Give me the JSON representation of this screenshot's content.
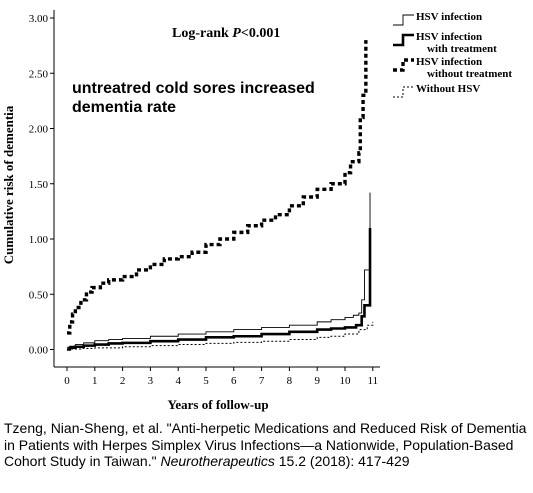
{
  "chart_data": {
    "type": "line",
    "title": "",
    "annotation_logrank_prefix": "Log-rank ",
    "annotation_logrank_p": "P",
    "annotation_logrank_suffix": "<0.001",
    "annotation_text_line1": "untreatred cold sores increased",
    "annotation_text_line2": "dementia rate",
    "xlabel": "Years of follow-up",
    "ylabel": "Cumulative risk of dementia",
    "xlim": [
      0,
      11.3
    ],
    "ylim": [
      0,
      3.0
    ],
    "xticks": [
      "0",
      "1",
      "2",
      "3",
      "4",
      "5",
      "6",
      "7",
      "8",
      "9",
      "10",
      "11"
    ],
    "yticks": [
      "0.00",
      "0.50",
      "1.00",
      "1.50",
      "2.00",
      "2.50",
      "3.00"
    ],
    "grid": false,
    "legend_position": "top-right",
    "series": [
      {
        "name": "HSV infection",
        "style": "solid-thin",
        "points": [
          [
            0,
            0.02
          ],
          [
            0.1,
            0.03
          ],
          [
            0.3,
            0.045
          ],
          [
            0.6,
            0.06
          ],
          [
            1,
            0.08
          ],
          [
            1.5,
            0.09
          ],
          [
            2,
            0.1
          ],
          [
            3,
            0.12
          ],
          [
            4,
            0.14
          ],
          [
            5,
            0.16
          ],
          [
            6,
            0.18
          ],
          [
            7,
            0.2
          ],
          [
            8,
            0.22
          ],
          [
            9,
            0.25
          ],
          [
            9.5,
            0.27
          ],
          [
            10,
            0.29
          ],
          [
            10.3,
            0.31
          ],
          [
            10.5,
            0.33
          ],
          [
            10.6,
            0.45
          ],
          [
            10.7,
            0.72
          ],
          [
            10.85,
            0.72
          ],
          [
            10.9,
            1.42
          ]
        ]
      },
      {
        "name": "HSV infection with treatment",
        "style": "solid-thick",
        "points": [
          [
            0,
            0.0
          ],
          [
            0.1,
            0.015
          ],
          [
            0.3,
            0.025
          ],
          [
            0.6,
            0.035
          ],
          [
            1,
            0.045
          ],
          [
            1.5,
            0.055
          ],
          [
            2,
            0.06
          ],
          [
            3,
            0.075
          ],
          [
            4,
            0.09
          ],
          [
            5,
            0.11
          ],
          [
            6,
            0.12
          ],
          [
            7,
            0.14
          ],
          [
            8,
            0.16
          ],
          [
            9,
            0.18
          ],
          [
            9.5,
            0.19
          ],
          [
            10,
            0.2
          ],
          [
            10.4,
            0.22
          ],
          [
            10.55,
            0.22
          ],
          [
            10.6,
            0.3
          ],
          [
            10.7,
            0.4
          ],
          [
            10.85,
            0.4
          ],
          [
            10.9,
            1.1
          ]
        ]
      },
      {
        "name": "HSV infection without treatment",
        "style": "dashed-thick",
        "points": [
          [
            0,
            0.15
          ],
          [
            0.1,
            0.25
          ],
          [
            0.2,
            0.32
          ],
          [
            0.3,
            0.38
          ],
          [
            0.5,
            0.45
          ],
          [
            0.7,
            0.52
          ],
          [
            0.9,
            0.56
          ],
          [
            1.2,
            0.6
          ],
          [
            1.5,
            0.63
          ],
          [
            2,
            0.66
          ],
          [
            2.5,
            0.72
          ],
          [
            3,
            0.77
          ],
          [
            3.5,
            0.82
          ],
          [
            4,
            0.84
          ],
          [
            4.5,
            0.88
          ],
          [
            5,
            0.95
          ],
          [
            5.5,
            1.0
          ],
          [
            6,
            1.06
          ],
          [
            6.5,
            1.12
          ],
          [
            7,
            1.17
          ],
          [
            7.5,
            1.22
          ],
          [
            8,
            1.3
          ],
          [
            8.5,
            1.38
          ],
          [
            9,
            1.45
          ],
          [
            9.5,
            1.5
          ],
          [
            10,
            1.6
          ],
          [
            10.2,
            1.7
          ],
          [
            10.5,
            1.78
          ],
          [
            10.55,
            2.1
          ],
          [
            10.65,
            2.3
          ],
          [
            10.75,
            2.8
          ]
        ]
      },
      {
        "name": "Without HSV",
        "style": "dotted-thin",
        "points": [
          [
            0,
            0.005
          ],
          [
            0.5,
            0.01
          ],
          [
            1,
            0.015
          ],
          [
            2,
            0.025
          ],
          [
            3,
            0.035
          ],
          [
            4,
            0.045
          ],
          [
            5,
            0.055
          ],
          [
            6,
            0.065
          ],
          [
            7,
            0.075
          ],
          [
            8,
            0.09
          ],
          [
            9,
            0.11
          ],
          [
            9.5,
            0.12
          ],
          [
            10,
            0.14
          ],
          [
            10.5,
            0.18
          ],
          [
            10.8,
            0.22
          ],
          [
            11,
            0.25
          ]
        ]
      }
    ]
  },
  "legend": {
    "items": [
      {
        "line1": "HSV infection",
        "line2": ""
      },
      {
        "line1": "HSV infection",
        "line2": "with treatment"
      },
      {
        "line1": "HSV infection",
        "line2": "without treatment"
      },
      {
        "line1": "Without HSV",
        "line2": ""
      }
    ]
  },
  "citation": {
    "before_italic": "Tzeng, Nian-Sheng, et al. \"Anti-herpetic Medications and Reduced Risk of Dementia in Patients with Herpes Simplex Virus Infections—a Nationwide, Population-Based Cohort Study in Taiwan.\" ",
    "italic": "Neurotherapeutics",
    "after_italic": " 15.2 (2018): 417-429"
  }
}
